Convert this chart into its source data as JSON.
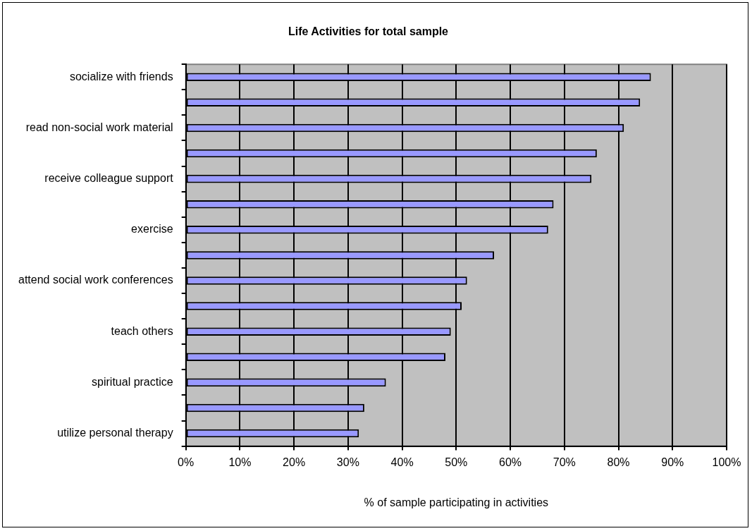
{
  "chart_data": {
    "type": "bar",
    "orientation": "horizontal",
    "title": "Life Activities for total sample",
    "xlabel": "% of sample participating in activities",
    "categories": [
      "socialize with friends",
      null,
      "read non-social work material",
      null,
      "receive colleague support",
      null,
      "exercise",
      null,
      "attend social work conferences",
      null,
      "teach others",
      null,
      "spiritual practice",
      null,
      "utilize personal therapy"
    ],
    "values": [
      86,
      84,
      81,
      76,
      75,
      68,
      67,
      57,
      52,
      51,
      49,
      48,
      37,
      33,
      32
    ],
    "color": "#9999ff",
    "xlim": [
      0,
      100
    ],
    "xticks": [
      {
        "value": 0,
        "label": "0%"
      },
      {
        "value": 10,
        "label": "10%"
      },
      {
        "value": 20,
        "label": "20%"
      },
      {
        "value": 30,
        "label": "30%"
      },
      {
        "value": 40,
        "label": "40%"
      },
      {
        "value": 50,
        "label": "50%"
      },
      {
        "value": 60,
        "label": "60%"
      },
      {
        "value": 70,
        "label": "70%"
      },
      {
        "value": 80,
        "label": "80%"
      },
      {
        "value": 90,
        "label": "90%"
      },
      {
        "value": 100,
        "label": "100%"
      }
    ],
    "grid": "x",
    "legend": false
  }
}
